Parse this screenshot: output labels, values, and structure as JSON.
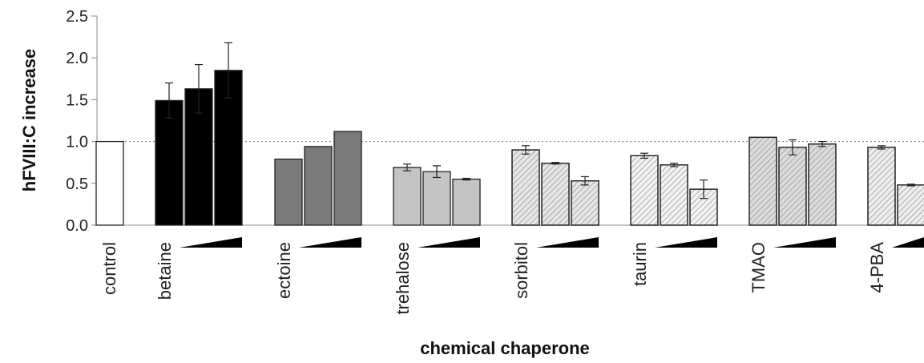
{
  "chart_data": {
    "type": "bar",
    "title": "",
    "xlabel": "chemical chaperone",
    "ylabel": "hFVIII:C increase",
    "ylim": [
      0,
      2.5
    ],
    "yticks": [
      "0.0",
      "0.5",
      "1.0",
      "1.5",
      "2.0",
      "2.5"
    ],
    "reference_line": 1.0,
    "grid": false,
    "legend": "none",
    "colors": {
      "control": "#ffffff",
      "betaine": "#000000",
      "ectoine": "#7a7a7a",
      "trehalose": "#c4c4c4",
      "sorbitol": "#e6e6e6",
      "taurin": "#f2f2f2",
      "TMAO": "#dcdcdc",
      "4-PBA": "#ededed",
      "outline": "#222222",
      "hatch": "#8a8a8a"
    },
    "groups": [
      {
        "label": "control",
        "values": [
          1.0
        ],
        "errors": [
          0
        ],
        "hatch": false,
        "ramp": false
      },
      {
        "label": "betaine",
        "values": [
          1.49,
          1.63,
          1.85
        ],
        "errors": [
          0.21,
          0.29,
          0.33
        ],
        "hatch": false,
        "ramp": true
      },
      {
        "label": "ectoine",
        "values": [
          0.79,
          0.94,
          1.12
        ],
        "errors": [
          0,
          0,
          0
        ],
        "hatch": false,
        "ramp": true
      },
      {
        "label": "trehalose",
        "values": [
          0.69,
          0.64,
          0.55
        ],
        "errors": [
          0.04,
          0.07,
          0.01
        ],
        "hatch": false,
        "ramp": true
      },
      {
        "label": "sorbitol",
        "values": [
          0.9,
          0.74,
          0.53
        ],
        "errors": [
          0.05,
          0.01,
          0.05
        ],
        "hatch": true,
        "ramp": true
      },
      {
        "label": "taurin",
        "values": [
          0.83,
          0.72,
          0.43
        ],
        "errors": [
          0.03,
          0.02,
          0.11
        ],
        "hatch": true,
        "ramp": true
      },
      {
        "label": "TMAO",
        "values": [
          1.05,
          0.93,
          0.97
        ],
        "errors": [
          0,
          0.09,
          0.03
        ],
        "hatch": true,
        "ramp": true
      },
      {
        "label": "4-PBA",
        "values": [
          0.93,
          0.48
        ],
        "errors": [
          0.02,
          0.01
        ],
        "hatch": true,
        "ramp": true
      }
    ]
  }
}
